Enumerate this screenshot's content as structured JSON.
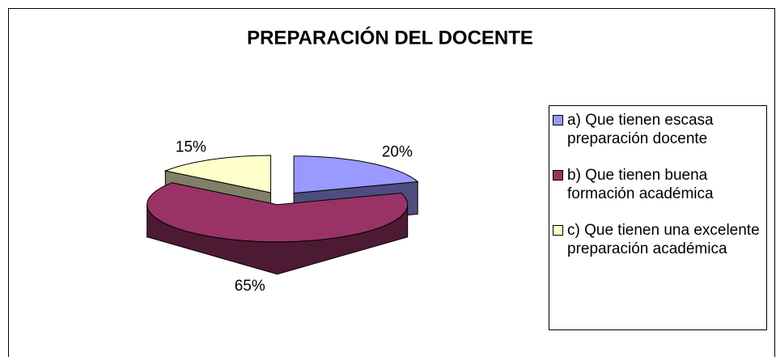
{
  "chart_data": {
    "type": "pie3d",
    "title": "PREPARACIÓN DEL DOCENTE",
    "categories": [
      "a) Que tienen escasa preparación docente",
      "b) Que tienen buena formación académica",
      "c) Que tienen una excelente preparación académica"
    ],
    "values": [
      20,
      65,
      15
    ],
    "value_labels": [
      "20%",
      "65%",
      "15%"
    ],
    "colors": [
      "#9999ff",
      "#993366",
      "#ffffcc"
    ],
    "legend": "right"
  }
}
